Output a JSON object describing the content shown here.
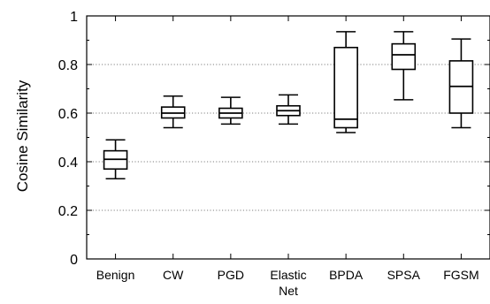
{
  "chart_data": {
    "type": "box",
    "title": "",
    "xlabel": "",
    "ylabel": "Cosine Similarity",
    "ylim": [
      0,
      1
    ],
    "yticks": [
      "0",
      "0.2",
      "0.4",
      "0.6",
      "0.8",
      "1"
    ],
    "grid": "horizontal-dotted",
    "categories": [
      {
        "lines": [
          "Benign"
        ]
      },
      {
        "lines": [
          "CW"
        ]
      },
      {
        "lines": [
          "PGD"
        ]
      },
      {
        "lines": [
          "Elastic",
          "Net"
        ]
      },
      {
        "lines": [
          "BPDA"
        ]
      },
      {
        "lines": [
          "SPSA"
        ]
      },
      {
        "lines": [
          "FGSM"
        ]
      }
    ],
    "boxes": [
      {
        "min": 0.33,
        "q1": 0.37,
        "median": 0.41,
        "q3": 0.445,
        "max": 0.49
      },
      {
        "min": 0.54,
        "q1": 0.58,
        "median": 0.6,
        "q3": 0.625,
        "max": 0.67
      },
      {
        "min": 0.555,
        "q1": 0.58,
        "median": 0.6,
        "q3": 0.62,
        "max": 0.665
      },
      {
        "min": 0.555,
        "q1": 0.59,
        "median": 0.61,
        "q3": 0.63,
        "max": 0.675
      },
      {
        "min": 0.52,
        "q1": 0.54,
        "median": 0.575,
        "q3": 0.87,
        "max": 0.935
      },
      {
        "min": 0.655,
        "q1": 0.78,
        "median": 0.84,
        "q3": 0.885,
        "max": 0.935
      },
      {
        "min": 0.54,
        "q1": 0.6,
        "median": 0.71,
        "q3": 0.815,
        "max": 0.905
      }
    ]
  }
}
